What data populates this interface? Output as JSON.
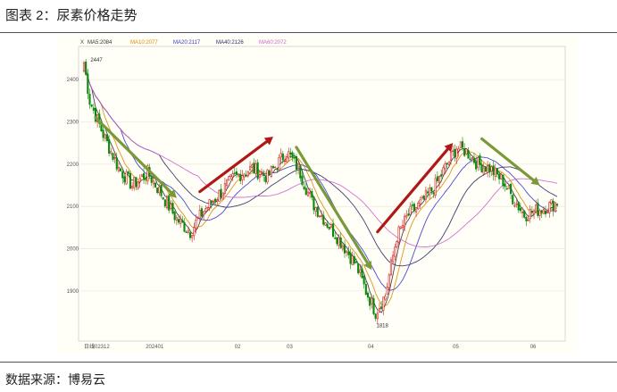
{
  "figure_title": "图表 2：尿素价格走势",
  "source_note": "数据来源：博易云",
  "chart_data": {
    "type": "candlestick",
    "title": "",
    "legend_prefix": "X",
    "ma_legend": [
      {
        "label": "MA5:2084",
        "color": "#333333"
      },
      {
        "label": "MA10:2077",
        "color": "#e08a00"
      },
      {
        "label": "MA20:2117",
        "color": "#3a3acc"
      },
      {
        "label": "MA40:2126",
        "color": "#2a2a6a"
      },
      {
        "label": "MA60:2072",
        "color": "#cc66cc"
      }
    ],
    "y_ticks": [
      1900,
      2000,
      2100,
      2200,
      2300,
      2400
    ],
    "ylim": [
      1790,
      2470
    ],
    "x_tick_labels": [
      "日线",
      "202312",
      "202401",
      "02",
      "03",
      "04",
      "05",
      "06"
    ],
    "x_tick_positions": [
      0,
      4,
      32,
      78,
      105,
      147,
      191,
      231
    ],
    "annotations": [
      {
        "text": "2447",
        "x": 2,
        "y": 2447
      },
      {
        "text": "1818",
        "x": 150,
        "y": 1818
      }
    ],
    "up_color": "#d22020",
    "down_color": "#0a8a0a",
    "trend_arrows": [
      {
        "color": "#7a9a3a",
        "from": [
          6,
          2310
        ],
        "to": [
          48,
          2120
        ]
      },
      {
        "color": "#b01818",
        "from": [
          60,
          2135
        ],
        "to": [
          98,
          2265
        ]
      },
      {
        "color": "#7a9a3a",
        "from": [
          110,
          2240
        ],
        "to": [
          149,
          1950
        ]
      },
      {
        "color": "#b01818",
        "from": [
          152,
          2040
        ],
        "to": [
          191,
          2250
        ]
      },
      {
        "color": "#7a9a3a",
        "from": [
          206,
          2260
        ],
        "to": [
          236,
          2150
        ]
      }
    ],
    "n": 246,
    "anchors": [
      [
        0,
        2440
      ],
      [
        3,
        2350
      ],
      [
        10,
        2270
      ],
      [
        18,
        2190
      ],
      [
        25,
        2150
      ],
      [
        33,
        2180
      ],
      [
        40,
        2130
      ],
      [
        48,
        2070
      ],
      [
        55,
        2040
      ],
      [
        62,
        2090
      ],
      [
        70,
        2130
      ],
      [
        78,
        2170
      ],
      [
        87,
        2190
      ],
      [
        95,
        2170
      ],
      [
        100,
        2200
      ],
      [
        105,
        2230
      ],
      [
        111,
        2190
      ],
      [
        118,
        2110
      ],
      [
        126,
        2060
      ],
      [
        134,
        2010
      ],
      [
        141,
        1960
      ],
      [
        146,
        1900
      ],
      [
        151,
        1850
      ],
      [
        156,
        1890
      ],
      [
        162,
        2030
      ],
      [
        168,
        2080
      ],
      [
        175,
        2110
      ],
      [
        182,
        2150
      ],
      [
        188,
        2200
      ],
      [
        193,
        2240
      ],
      [
        198,
        2230
      ],
      [
        204,
        2200
      ],
      [
        210,
        2190
      ],
      [
        217,
        2160
      ],
      [
        222,
        2120
      ],
      [
        228,
        2080
      ],
      [
        234,
        2090
      ],
      [
        240,
        2100
      ],
      [
        245,
        2110
      ]
    ]
  }
}
